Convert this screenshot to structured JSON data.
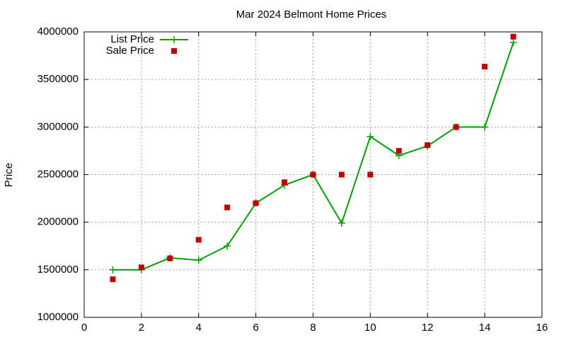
{
  "chart_data": {
    "type": "line",
    "title": "Mar 2024 Belmont Home Prices",
    "y_label": "Price",
    "x": [
      1,
      2,
      3,
      4,
      5,
      6,
      7,
      8,
      9,
      10,
      11,
      12,
      13,
      14,
      15
    ],
    "series": [
      {
        "name": "List Price",
        "type": "line",
        "color": "#00a000",
        "values": [
          1500000,
          1500000,
          1625000,
          1600000,
          1750000,
          2200000,
          2390000,
          2500000,
          1990000,
          2900000,
          2700000,
          2800000,
          3000000,
          3000000,
          3888000
        ]
      },
      {
        "name": "Sale Price",
        "type": "scatter",
        "color": "#c00000",
        "values": [
          1400000,
          1525000,
          1620000,
          1815000,
          2155000,
          2200000,
          2420000,
          2500000,
          2500000,
          2500000,
          2750000,
          2810000,
          3000000,
          3635000,
          3950000
        ]
      }
    ],
    "xlim": [
      0,
      16
    ],
    "xticks": [
      0,
      2,
      4,
      6,
      8,
      10,
      12,
      14,
      16
    ],
    "ylim": [
      1000000,
      4000000
    ],
    "yticks": [
      1000000,
      1500000,
      2000000,
      2500000,
      3000000,
      3500000,
      4000000
    ],
    "grid": true,
    "legend": "top-left"
  }
}
